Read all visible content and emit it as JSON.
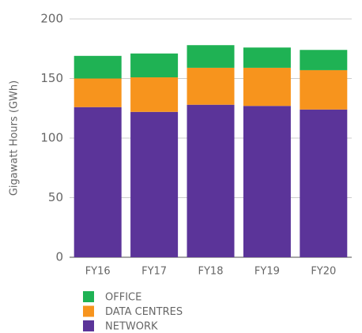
{
  "chart_data": {
    "type": "stacked_bar",
    "y_label": "Gigawatt Hours (GWh)",
    "categories": [
      "FY16",
      "FY17",
      "FY18",
      "FY19",
      "FY20"
    ],
    "series": [
      {
        "name": "NETWORK",
        "color": "#5b3499",
        "values": [
          126,
          122,
          128,
          127,
          124
        ]
      },
      {
        "name": "DATA CENTRES",
        "color": "#f7941d",
        "values": [
          24,
          29,
          31,
          32,
          33
        ]
      },
      {
        "name": "OFFICE",
        "color": "#1fb254",
        "values": [
          19,
          20,
          19,
          17,
          17
        ]
      }
    ],
    "ylim": [
      0,
      200
    ],
    "yticks": [
      0,
      50,
      100,
      150,
      200
    ],
    "grid": true
  }
}
